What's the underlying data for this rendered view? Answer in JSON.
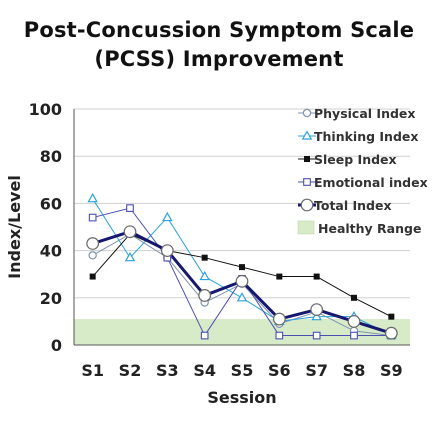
{
  "chart_data": {
    "type": "line",
    "title_line1": "Post-Concussion Symptom Scale",
    "title_line2": "(PCSS) Improvement",
    "xlabel": "Session",
    "ylabel": "Index/Level",
    "categories": [
      "S1",
      "S2",
      "S3",
      "S4",
      "S5",
      "S6",
      "S7",
      "S8",
      "S9"
    ],
    "ylim": [
      0,
      100
    ],
    "yticks": [
      "0",
      "20",
      "40",
      "60",
      "80",
      "100"
    ],
    "grid": true,
    "legend_position": "top-right",
    "healthy_range": {
      "label": "Healthy Range",
      "ymin": 0,
      "ymax": 11,
      "color": "#d8ebc8"
    },
    "series": [
      {
        "name": "Physical Index",
        "marker": "circle-open",
        "color": "#7f93ae",
        "line_width": 1,
        "values": [
          38,
          47,
          37,
          18,
          26,
          9,
          14,
          6,
          4
        ]
      },
      {
        "name": "Thinking Index",
        "marker": "triangle-open",
        "color": "#2ba3dc",
        "line_width": 1,
        "values": [
          62,
          37,
          54,
          29,
          20,
          10,
          12,
          12,
          4
        ]
      },
      {
        "name": "Sleep Index",
        "marker": "square-filled",
        "color": "#111111",
        "line_width": 1,
        "values": [
          29,
          47,
          40,
          37,
          33,
          29,
          29,
          20,
          12
        ]
      },
      {
        "name": "Emotional index",
        "marker": "square-open",
        "color": "#4b4fb3",
        "line_width": 1,
        "values": [
          54,
          58,
          37,
          4,
          28,
          4,
          4,
          4,
          4
        ]
      },
      {
        "name": "Total Index",
        "marker": "circle-large",
        "color": "#15186e",
        "line_width": 3,
        "values": [
          43,
          48,
          40,
          21,
          27,
          11,
          15,
          10,
          5
        ]
      }
    ]
  }
}
